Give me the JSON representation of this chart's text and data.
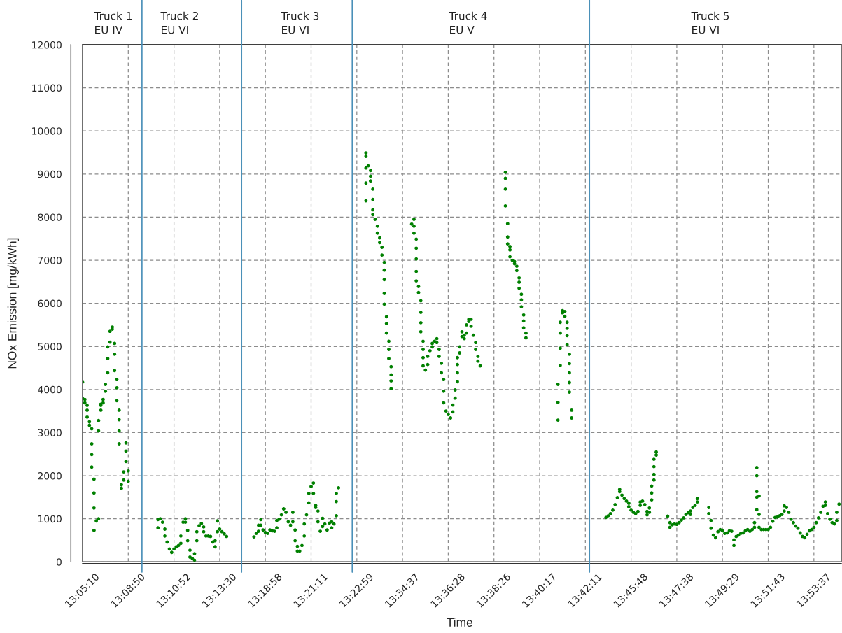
{
  "chart_data": {
    "type": "scatter",
    "xlabel": "Time",
    "ylabel": "NOx Emission [mg/kWh]",
    "marker": "circle",
    "grid": true,
    "ylim": [
      0,
      12000
    ],
    "yticks": [
      0,
      1000,
      2000,
      3000,
      4000,
      5000,
      6000,
      7000,
      8000,
      9000,
      10000,
      11000,
      12000
    ],
    "annotations": [
      "Truck 1\nEU IV",
      "Truck 2\nEU VI",
      "Truck 3\nEU VI",
      "Truck 4\nEU V",
      "Truck 5\nEU VI"
    ],
    "categories": [
      "13:05:10",
      null,
      null,
      null,
      null,
      null,
      null,
      null,
      null,
      null,
      null,
      null,
      null,
      null,
      null,
      null,
      null,
      null,
      null,
      null,
      "13:08:50",
      null,
      null,
      null,
      null,
      null,
      null,
      null,
      null,
      null,
      null,
      null,
      null,
      null,
      null,
      null,
      null,
      null,
      null,
      null,
      "13:10:52",
      null,
      null,
      null,
      null,
      null,
      null,
      null,
      null,
      null,
      null,
      null,
      null,
      null,
      null,
      null,
      null,
      null,
      null,
      null,
      "13:13:30",
      null,
      null,
      null,
      null,
      null,
      null,
      null,
      null,
      null,
      null,
      null,
      null,
      null,
      null,
      null,
      null,
      null,
      null,
      null,
      "13:18:58",
      null,
      null,
      null,
      null,
      null,
      null,
      null,
      null,
      null,
      null,
      null,
      null,
      null,
      null,
      null,
      null,
      null,
      null,
      null,
      "13:21:11",
      null,
      null,
      null,
      null,
      null,
      null,
      null,
      null,
      null,
      null,
      null,
      null,
      null,
      null,
      null,
      null,
      null,
      null,
      null,
      "13:22:59",
      null,
      null,
      null,
      null,
      null,
      null,
      null,
      null,
      null,
      null,
      null,
      null,
      null,
      null,
      null,
      null,
      null,
      null,
      null,
      "13:34:37",
      null,
      null,
      null,
      null,
      null,
      null,
      null,
      null,
      null,
      null,
      null,
      null,
      null,
      null,
      null,
      null,
      null,
      null,
      null,
      "13:36:28",
      null,
      null,
      null,
      null,
      null,
      null,
      null,
      null,
      null,
      null,
      null,
      null,
      null,
      null,
      null,
      null,
      null,
      null,
      null,
      "13:38:26",
      null,
      null,
      null,
      null,
      null,
      null,
      null,
      null,
      null,
      null,
      null,
      null,
      null,
      null,
      null,
      null,
      null,
      null,
      null,
      "13:40:17",
      null,
      null,
      null,
      null,
      null,
      null,
      null,
      null,
      null,
      null,
      null,
      null,
      null,
      null,
      null,
      null,
      null,
      null,
      null,
      "13:42:11",
      null,
      null,
      null,
      null,
      null,
      null,
      null,
      null,
      null,
      null,
      null,
      null,
      null,
      null,
      null,
      null,
      null,
      null,
      null,
      "13:45:48",
      null,
      null,
      null,
      null,
      null,
      null,
      null,
      null,
      null,
      null,
      null,
      null,
      null,
      null,
      null,
      null,
      null,
      null,
      null,
      "13:47:38",
      null,
      null,
      null,
      null,
      null,
      null,
      null,
      null,
      null,
      null,
      null,
      null,
      null,
      null,
      null,
      null,
      null,
      null,
      null,
      "13:49:29",
      null,
      null,
      null,
      null,
      null,
      null,
      null,
      null,
      null,
      null,
      null,
      null,
      null,
      null,
      null,
      null,
      null,
      null,
      null,
      "13:51:43",
      null,
      null,
      null,
      null,
      null,
      null,
      null,
      null,
      null,
      null,
      null,
      null,
      null,
      null,
      null,
      null,
      null,
      null,
      null,
      "13:53:37",
      null,
      null,
      null,
      null,
      null,
      null,
      null,
      null,
      null,
      null,
      null,
      null
    ],
    "series": [
      {
        "color": "#008000",
        "values": [
          4170,
          3690,
          3630,
          3250,
          3090,
          1920,
          950,
          1000,
          3520,
          3690,
          3960,
          4390,
          5100,
          5450,
          5070,
          4230,
          3520,
          1790,
          1900,
          2760,
          2110,
          null,
          null,
          null,
          null,
          null,
          null,
          null,
          null,
          null,
          null,
          null,
          null,
          790,
          1000,
          920,
          760,
          460,
          300,
          220,
          300,
          350,
          380,
          430,
          920,
          1000,
          730,
          270,
          80,
          40,
          490,
          840,
          890,
          810,
          600,
          600,
          590,
          460,
          350,
          700,
          760,
          700,
          650,
          590,
          null,
          null,
          null,
          null,
          null,
          null,
          null,
          null,
          null,
          null,
          null,
          580,
          660,
          710,
          980,
          740,
          680,
          660,
          740,
          720,
          710,
          790,
          990,
          1090,
          1230,
          1150,
          930,
          850,
          1150,
          740,
          360,
          250,
          380,
          600,
          1090,
          1370,
          1750,
          1830,
          1310,
          1180,
          710,
          820,
          880,
          740,
          900,
          930,
          880,
          1070,
          1720,
          null,
          null,
          null,
          null,
          null,
          null,
          null,
          null,
          null,
          null,
          null,
          8380,
          9190,
          9080,
          8650,
          7950,
          7790,
          7520,
          7300,
          6950,
          5690,
          5120,
          4530,
          null,
          null,
          null,
          null,
          null,
          null,
          null,
          null,
          7840,
          7950,
          7490,
          6390,
          6060,
          5120,
          4450,
          4580,
          4900,
          4990,
          5120,
          5180,
          4930,
          4610,
          4230,
          3500,
          3420,
          3340,
          3480,
          3800,
          4180,
          4850,
          5230,
          5260,
          5310,
          5580,
          5630,
          5260,
          5090,
          4770,
          4550,
          null,
          null,
          null,
          null,
          null,
          null,
          null,
          null,
          null,
          null,
          9040,
          7850,
          7320,
          7000,
          6920,
          6860,
          6590,
          6210,
          5730,
          5310,
          null,
          null,
          null,
          null,
          null,
          null,
          null,
          null,
          null,
          null,
          null,
          null,
          null,
          3290,
          4560,
          5780,
          5810,
          5560,
          4820,
          3520,
          null,
          null,
          null,
          null,
          null,
          null,
          null,
          null,
          null,
          null,
          null,
          null,
          null,
          null,
          1030,
          1070,
          1120,
          1200,
          1330,
          1490,
          1630,
          1550,
          1470,
          1410,
          1360,
          1200,
          1150,
          1120,
          1170,
          1310,
          1410,
          1330,
          1170,
          1150,
          1440,
          1900,
          2480,
          null,
          null,
          null,
          null,
          1060,
          910,
          860,
          880,
          870,
          910,
          970,
          1020,
          1100,
          1140,
          1100,
          1260,
          1310,
          1390,
          null,
          null,
          null,
          null,
          1260,
          960,
          620,
          560,
          700,
          750,
          720,
          660,
          670,
          720,
          710,
          380,
          590,
          620,
          660,
          670,
          720,
          750,
          710,
          750,
          800,
          1210,
          1530,
          750,
          750,
          750,
          750,
          800,
          940,
          1030,
          1040,
          1070,
          1100,
          1180,
          1260,
          1150,
          990,
          910,
          830,
          780,
          670,
          590,
          560,
          640,
          720,
          750,
          800,
          910,
          1020,
          1150,
          1290,
          1390,
          1120,
          990,
          910,
          880,
          960,
          1340,
          null
        ]
      },
      {
        "color": "#008000",
        "values": [
          3790,
          3770,
          3520,
          3170,
          2740,
          1600,
          null,
          3040,
          3660,
          3770,
          4120,
          4720,
          5350,
          5400,
          4820,
          4040,
          3300,
          1710,
          2090,
          2570,
          1870,
          null,
          null,
          null,
          null,
          null,
          null,
          null,
          null,
          null,
          null,
          null,
          null,
          980,
          null,
          null,
          600,
          null,
          null,
          null,
          null,
          null,
          null,
          600,
          null,
          920,
          490,
          110,
          null,
          190,
          700,
          null,
          null,
          700,
          null,
          null,
          null,
          null,
          490,
          950,
          null,
          null,
          null,
          null,
          null,
          null,
          null,
          null,
          null,
          null,
          null,
          null,
          null,
          null,
          null,
          null,
          null,
          850,
          850,
          null,
          null,
          null,
          null,
          null,
          null,
          960,
          null,
          null,
          null,
          null,
          null,
          null,
          930,
          490,
          250,
          null,
          null,
          880,
          null,
          1590,
          null,
          1590,
          1260,
          930,
          null,
          1010,
          null,
          null,
          null,
          790,
          null,
          1400,
          null,
          null,
          null,
          null,
          null,
          null,
          null,
          null,
          null,
          null,
          null,
          null,
          8790,
          null,
          8950,
          8410,
          null,
          7630,
          7410,
          7120,
          6770,
          5530,
          4930,
          4340,
          null,
          null,
          null,
          null,
          null,
          null,
          null,
          null,
          null,
          7790,
          7280,
          6250,
          5790,
          4930,
          null,
          4770,
          null,
          5070,
          null,
          5090,
          4770,
          4390,
          3960,
          null,
          null,
          null,
          3640,
          3990,
          4390,
          4990,
          5340,
          5180,
          5500,
          5630,
          5470,
          null,
          4930,
          4660,
          null,
          null,
          null,
          null,
          null,
          null,
          null,
          null,
          null,
          null,
          null,
          8900,
          7540,
          7240,
          null,
          6970,
          6760,
          6490,
          6080,
          5590,
          5200,
          null,
          null,
          null,
          null,
          null,
          null,
          null,
          null,
          null,
          null,
          null,
          null,
          null,
          3700,
          4960,
          5830,
          5700,
          5420,
          4600,
          3340,
          null,
          null,
          null,
          null,
          null,
          null,
          null,
          null,
          null,
          null,
          null,
          null,
          null,
          null,
          null,
          null,
          null,
          null,
          null,
          null,
          1680,
          null,
          null,
          null,
          1280,
          null,
          null,
          null,
          null,
          1390,
          null,
          null,
          1090,
          1250,
          1600,
          2030,
          2550,
          null,
          null,
          null,
          null,
          null,
          800,
          null,
          null,
          null,
          null,
          null,
          null,
          null,
          null,
          1180,
          null,
          null,
          1470,
          null,
          null,
          null,
          null,
          1120,
          780,
          null,
          null,
          null,
          null,
          null,
          null,
          null,
          null,
          null,
          510,
          null,
          null,
          null,
          null,
          null,
          null,
          null,
          null,
          910,
          1500,
          1100,
          null,
          null,
          null,
          null,
          null,
          null,
          null,
          null,
          null,
          null,
          1300,
          null,
          null,
          null,
          null,
          null,
          null,
          null,
          null,
          null,
          null,
          null,
          null,
          null,
          null,
          null,
          null,
          null,
          1310,
          null,
          null,
          null,
          null,
          1150,
          null,
          null
        ]
      },
      {
        "color": "#008000",
        "values": [
          null,
          null,
          3360,
          null,
          2490,
          1250,
          null,
          3280,
          3630,
          null,
          null,
          4990,
          null,
          null,
          4440,
          3740,
          3040,
          null,
          null,
          2330,
          null,
          null,
          null,
          null,
          null,
          null,
          null,
          null,
          null,
          null,
          null,
          null,
          null,
          null,
          null,
          null,
          null,
          null,
          null,
          null,
          null,
          null,
          null,
          null,
          null,
          null,
          null,
          null,
          null,
          null,
          null,
          null,
          null,
          null,
          null,
          null,
          null,
          null,
          null,
          null,
          null,
          null,
          null,
          null,
          null,
          null,
          null,
          null,
          null,
          null,
          null,
          null,
          null,
          null,
          null,
          null,
          null,
          null,
          null,
          null,
          null,
          null,
          null,
          null,
          null,
          null,
          null,
          null,
          null,
          null,
          null,
          null,
          null,
          null,
          null,
          null,
          null,
          null,
          null,
          null,
          null,
          null,
          null,
          null,
          null,
          null,
          null,
          null,
          null,
          null,
          null,
          1590,
          null,
          null,
          null,
          null,
          null,
          null,
          null,
          null,
          null,
          null,
          null,
          null,
          9140,
          null,
          8840,
          8170,
          null,
          null,
          null,
          null,
          6550,
          5310,
          4720,
          4200,
          null,
          null,
          null,
          null,
          null,
          null,
          null,
          null,
          null,
          7630,
          7030,
          null,
          5550,
          4740,
          null,
          null,
          null,
          null,
          null,
          null,
          null,
          null,
          3690,
          null,
          null,
          null,
          null,
          null,
          4580,
          null,
          null,
          null,
          null,
          null,
          null,
          null,
          null,
          null,
          null,
          null,
          null,
          null,
          null,
          null,
          null,
          null,
          null,
          null,
          null,
          8650,
          7380,
          7080,
          null,
          null,
          null,
          6350,
          5920,
          5430,
          null,
          null,
          null,
          null,
          null,
          null,
          null,
          null,
          null,
          null,
          null,
          null,
          null,
          null,
          4120,
          5310,
          null,
          null,
          5250,
          4390,
          null,
          null,
          null,
          null,
          null,
          null,
          null,
          null,
          null,
          null,
          null,
          null,
          null,
          null,
          null,
          null,
          null,
          null,
          null,
          null,
          null,
          null,
          null,
          null,
          null,
          null,
          null,
          null,
          null,
          null,
          null,
          null,
          null,
          null,
          null,
          1760,
          2210,
          null,
          null,
          null,
          null,
          null,
          null,
          null,
          null,
          null,
          null,
          null,
          null,
          null,
          null,
          null,
          null,
          null,
          null,
          null,
          null,
          null,
          null,
          null,
          null,
          null,
          null,
          null,
          null,
          null,
          null,
          null,
          null,
          null,
          null,
          null,
          null,
          null,
          null,
          null,
          null,
          null,
          null,
          null,
          null,
          1630,
          800,
          null,
          null,
          null,
          null,
          null,
          null,
          null,
          null,
          null,
          null,
          null,
          null,
          null,
          null,
          null,
          null,
          null,
          null,
          null,
          null,
          null,
          null,
          null,
          null,
          null,
          null,
          null,
          null,
          null,
          null,
          null,
          null,
          null,
          null,
          null,
          null
        ]
      },
      {
        "color": "#008000",
        "values": [
          null,
          null,
          null,
          null,
          2200,
          730,
          null,
          null,
          null,
          null,
          null,
          null,
          null,
          null,
          null,
          null,
          2740,
          null,
          null,
          null,
          null,
          null,
          null,
          null,
          null,
          null,
          null,
          null,
          null,
          null,
          null,
          null,
          null,
          null,
          null,
          null,
          null,
          null,
          null,
          null,
          null,
          null,
          null,
          null,
          null,
          null,
          null,
          null,
          null,
          null,
          null,
          null,
          null,
          null,
          null,
          null,
          null,
          null,
          null,
          null,
          null,
          null,
          null,
          null,
          null,
          null,
          null,
          null,
          null,
          null,
          null,
          null,
          null,
          null,
          null,
          null,
          null,
          null,
          null,
          null,
          null,
          null,
          null,
          null,
          null,
          null,
          null,
          null,
          null,
          null,
          null,
          null,
          null,
          null,
          null,
          null,
          null,
          null,
          null,
          null,
          null,
          null,
          null,
          null,
          null,
          null,
          null,
          null,
          null,
          null,
          null,
          null,
          null,
          null,
          null,
          null,
          null,
          null,
          null,
          null,
          null,
          null,
          null,
          null,
          9490,
          null,
          null,
          8060,
          null,
          null,
          null,
          null,
          6230,
          null,
          null,
          4020,
          null,
          null,
          null,
          null,
          null,
          null,
          null,
          null,
          null,
          null,
          6740,
          null,
          5340,
          4550,
          null,
          null,
          null,
          null,
          null,
          null,
          null,
          null,
          null,
          null,
          null,
          null,
          null,
          null,
          4740,
          null,
          null,
          null,
          null,
          null,
          null,
          null,
          null,
          null,
          null,
          null,
          null,
          null,
          null,
          null,
          null,
          null,
          null,
          null,
          null,
          8260,
          null,
          null,
          null,
          null,
          null,
          null,
          null,
          null,
          null,
          null,
          null,
          null,
          null,
          null,
          null,
          null,
          null,
          null,
          null,
          null,
          null,
          null,
          null,
          5560,
          null,
          null,
          5040,
          4160,
          null,
          null,
          null,
          null,
          null,
          null,
          null,
          null,
          null,
          null,
          null,
          null,
          null,
          null,
          null,
          null,
          null,
          null,
          null,
          null,
          null,
          null,
          null,
          null,
          null,
          null,
          null,
          null,
          null,
          null,
          null,
          null,
          null,
          null,
          null,
          null,
          2380,
          null,
          null,
          null,
          null,
          null,
          null,
          null,
          null,
          null,
          null,
          null,
          null,
          null,
          null,
          null,
          null,
          null,
          null,
          null,
          null,
          null,
          null,
          null,
          null,
          null,
          null,
          null,
          null,
          null,
          null,
          null,
          null,
          null,
          null,
          null,
          null,
          null,
          null,
          null,
          null,
          null,
          null,
          null,
          null,
          2000,
          null,
          null,
          null,
          null,
          null,
          null,
          null,
          null,
          null,
          null,
          null,
          null,
          null,
          null,
          null,
          null,
          null,
          null,
          null,
          null,
          null,
          null,
          null,
          null,
          null,
          null,
          null,
          null,
          null,
          null,
          null,
          null,
          null,
          null,
          null,
          null,
          null
        ]
      },
      {
        "color": "#008000",
        "values": [
          null,
          null,
          null,
          null,
          null,
          null,
          null,
          null,
          null,
          null,
          null,
          null,
          null,
          null,
          null,
          null,
          null,
          null,
          null,
          null,
          null,
          null,
          null,
          null,
          null,
          null,
          null,
          null,
          null,
          null,
          null,
          null,
          null,
          null,
          null,
          null,
          null,
          null,
          null,
          null,
          null,
          null,
          null,
          null,
          null,
          null,
          null,
          null,
          null,
          null,
          null,
          null,
          null,
          null,
          null,
          null,
          null,
          null,
          null,
          null,
          null,
          null,
          null,
          null,
          null,
          null,
          null,
          null,
          null,
          null,
          null,
          null,
          null,
          null,
          null,
          null,
          null,
          null,
          null,
          null,
          null,
          null,
          null,
          null,
          null,
          null,
          null,
          null,
          null,
          null,
          null,
          null,
          null,
          null,
          null,
          null,
          null,
          null,
          null,
          null,
          null,
          null,
          null,
          null,
          null,
          null,
          null,
          null,
          null,
          null,
          null,
          null,
          null,
          null,
          null,
          null,
          null,
          null,
          null,
          null,
          null,
          null,
          null,
          null,
          9410,
          null,
          null,
          null,
          null,
          null,
          null,
          null,
          5980,
          null,
          null,
          null,
          null,
          null,
          null,
          null,
          null,
          null,
          null,
          null,
          null,
          null,
          6520,
          null,
          null,
          null,
          null,
          null,
          null,
          null,
          null,
          null,
          null,
          null,
          null,
          null,
          null,
          null,
          null,
          null,
          null,
          null,
          null,
          null,
          null,
          null,
          null,
          null,
          null,
          null,
          null,
          null,
          null,
          null,
          null,
          null,
          null,
          null,
          null,
          null,
          null,
          null,
          null,
          null,
          null,
          null,
          null,
          null,
          null,
          null,
          null,
          null,
          null,
          null,
          null,
          null,
          null,
          null,
          null,
          null,
          null,
          null,
          null,
          null,
          null,
          null,
          null,
          null,
          null,
          3940,
          null,
          null,
          null,
          null,
          null,
          null,
          null,
          null,
          null,
          null,
          null,
          null,
          null,
          null,
          null,
          null,
          null,
          null,
          null,
          null,
          null,
          null,
          null,
          null,
          null,
          null,
          null,
          null,
          null,
          null,
          null,
          null,
          null,
          null,
          null,
          null,
          null,
          null,
          null,
          null,
          null,
          null,
          null,
          null,
          null,
          null,
          null,
          null,
          null,
          null,
          null,
          null,
          null,
          null,
          null,
          null,
          null,
          null,
          null,
          null,
          null,
          null,
          null,
          null,
          null,
          null,
          null,
          null,
          null,
          null,
          null,
          null,
          null,
          null,
          null,
          null,
          null,
          null,
          null,
          null,
          null,
          2190,
          null,
          null,
          null,
          null,
          null,
          null,
          null,
          null,
          null,
          null,
          null,
          null,
          null,
          null,
          null,
          null,
          null,
          null,
          null,
          null,
          null,
          null,
          null,
          null,
          null,
          null,
          null,
          null,
          null,
          null,
          null,
          null,
          null,
          null,
          null,
          null,
          null
        ]
      }
    ]
  }
}
